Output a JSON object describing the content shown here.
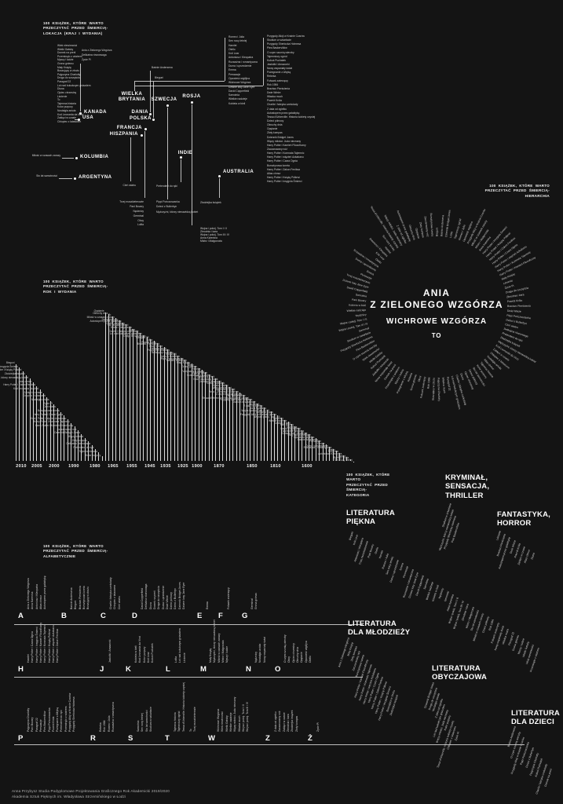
{
  "colors": {
    "background": "#141414",
    "text": "#e8e8e8",
    "accent": "#ffffff"
  },
  "footer": {
    "line1": "Anna Przybysz Studia Podyplomowe Projektowania Graficznego Rok Akademicki 2019/2020",
    "line2": "Akademia Sztuk Pięknych im. Władysława Strzemińskiego w Łodzi"
  },
  "location": {
    "title": [
      "100 KSIĄŻEK, KTÓRE WARTO",
      "PRZECZYTAĆ PRZED ŚMIERCIĄ-",
      "LOKACJA (KRAJ I WYDANIA)"
    ],
    "countries": [
      {
        "name": "USA",
        "books": [
          "Wiek niewinności",
          "Wielki Gatsby",
          "Domek na prerii",
          "Przeminęło z wiatrem",
          "Myszy i ludzie",
          "Grona gniewu",
          "Mały Książę",
          "Buszujący w zbożu",
          "Pajęczyna Charlotty",
          "Droga do szczęścia",
          "Paragraf 22",
          "Lot nad kukułczym gniazdem",
          "Diuna",
          "Ojciec chrzestny",
          "Lśnienie",
          "To",
          "Tajemna historia",
          "Kolor purpury",
          "Nostalgia anioła",
          "Kod Leonarda da Vinci",
          "Zaklęci w czasie",
          "Chłopiec z latawcem"
        ]
      },
      {
        "name": "KANADA",
        "books": [
          "Ania z Zielonego Wzgórza",
          "Delikatna równowaga",
          "Życie Pi"
        ]
      },
      {
        "name": "KOLUMBIA",
        "books": [
          "Miłość w czasach zarazy"
        ]
      },
      {
        "name": "ARGENTYNA",
        "books": [
          "Sto lat samotności"
        ]
      },
      {
        "name": "WIELKA BRYTANIA",
        "books": [
          "Romeo i Julia",
          "Sen nocy letniej",
          "Hamlet",
          "Otello",
          "Król Lear",
          "Antoniusz i Kleopatra",
          "Rozważna i romantyczna",
          "Duma i uprzedzenie",
          "Emma",
          "Perswazje",
          "Opowieść wigilijna",
          "Wichrowe Wzgórza",
          "Dziwne losy Jane Eyre",
          "David Copperfield",
          "Samotnia",
          "Wielkie nadzieje",
          "Kobieta w bieli",
          "Przygody Alicji w Krainie Czarów",
          "Studium w szkarłacie",
          "Przygody Sherlocka Holmesa",
          "Pies Baskervillów",
          "O czym szumią wierzby",
          "Tajemniczy ogród",
          "Kubuś Puchatek",
          "Jaskółki i Amazonki",
          "Nowy wspaniały świat",
          "Pożegnanie z Afryką",
          "Rebeka",
          "Folwark zwierzęcy",
          "Rok 1984",
          "Bractwo Pierścienia",
          "Dwie Wieże",
          "Władca much",
          "Powrót Króla",
          "Charlie i fabryka czekolady",
          "Z dala od zgiełku",
          "Autostopem przez galaktykę",
          "Tessa d'Urberville. Historia kobiety czystej",
          "Dzieci północy",
          "Okruchy dnia",
          "Opętanie",
          "Złoty kompas",
          "Dziennik Bridget Jones",
          "Więzy miłości. Juda nieznany",
          "Harry Potter i Kamień Filozoficzny",
          "Zaczarowany nóż",
          "Harry Potter i Komnata Tajemnic",
          "Harry Potter i więzień Azkabanu",
          "Harry Potter i Czara Ognia",
          "Bursztynowa luneta",
          "Harry Potter i Zakon Feniksa",
          "Atlas chmur",
          "Harry Potter i Książę Półkrwi",
          "Harry Potter i Insygnia Śmierci"
        ]
      },
      {
        "name": "DANIA",
        "books": [
          "Baśnie Andersena"
        ]
      },
      {
        "name": "POLSKA",
        "books": [
          "Bieguni"
        ]
      },
      {
        "name": "SZWECJA",
        "books": [
          "Pippi Pończoszanka",
          "Dzieci z Bullerbyn",
          "Mężczyźni, którzy nienawidzą kobiet"
        ]
      },
      {
        "name": "FRANCJA",
        "books": [
          "Trzej muszkieterowie",
          "Pani Bovary",
          "Nędznicy",
          "Germinal",
          "Obcy",
          "Lolita"
        ]
      },
      {
        "name": "HISZPANIA",
        "books": [
          "Cień wiatru"
        ]
      },
      {
        "name": "ROSJA",
        "books": [
          "Wojna i pokój. Tom I i II",
          "Zbrodnia i kara",
          "Wojna i pokój. Tom III i IV",
          "Anna Karenina",
          "Mistrz i Małgorzata"
        ]
      },
      {
        "name": "INDIE",
        "books": [
          "Pretendent do ręki"
        ]
      },
      {
        "name": "AUSTRALIA",
        "books": [
          "Złodziejka książek"
        ]
      }
    ]
  },
  "hierarchy": {
    "title": [
      "100 KSIĄŻEK, KTÓRE WARTO",
      "PRZECZYTAĆ PRZED ŚMIERCIĄ-",
      "HIERARCHIA"
    ],
    "center": {
      "line1": "ANIA",
      "line2": "Z ZIELONEGO WZGÓRZA",
      "line3": "WICHROWE WZGÓRZA",
      "line4": "TO"
    },
    "books": [
      "Baśnie Andersena",
      "Dziennik Bridget Jones",
      "Lolita",
      "Tajemniczy ogród",
      "Romeo i Julia",
      "Opowieść wigilijna",
      "Przygody Alicji w Krainie Czarów",
      "Miłość w czasach zarazy",
      "Mistrz i Małgorzata",
      "Anna Karenina",
      "Harry Potter i Insygnia Śmierci",
      "Harry Potter i Książę Półkrwi",
      "Harry Potter i Zakon Feniksa",
      "Harry Potter i Czara Ognia",
      "Harry Potter i więzień Azkabanu",
      "Harry Potter i Komnata Tajemnic",
      "Harry Potter i Kamień Filozoficzny",
      "Mały Książę",
      "Lśnienie",
      "Życie Pi",
      "Droga do szczęścia",
      "Zbrodnia i kara",
      "Powrót Króla",
      "Bractwo Pierścienia",
      "Dwie Wieże",
      "Pippi Pończoszanka",
      "Dzieci z Bullerbyn",
      "Cień wiatru",
      "Delikatna równowaga",
      "Pretendent do ręki",
      "Złodziejka książek",
      "Mężczyźni, którzy nienawidzą kobiet",
      "Kod Leonarda da Vinci",
      "Zaklęci w czasie",
      "Chłopiec z latawcem",
      "Nostalgia anioła",
      "Atlas chmur",
      "Tajemna historia",
      "Kolor purpury",
      "Sto lat samotności",
      "Dzieci północy",
      "Ojciec chrzestny",
      "Diuna",
      "Charlie i fabryka czekolady",
      "Lot nad kukułczym gniazdem",
      "Paragraf 22",
      "Władca much",
      "Pajęczyna Charlotty",
      "Buszujący w zbożu",
      "Rok 1984",
      "Folwark zwierzęcy",
      "Obcy",
      "Grona gniewu",
      "Rebeka",
      "Pożegnanie z Afryką",
      "Myszy i ludzie",
      "Przeminęło z wiatrem",
      "Domek na prerii",
      "Nowy wspaniały świat",
      "Jaskółki i Amazonki",
      "Kubuś Puchatek",
      "Wielki Gatsby",
      "Wiek niewinności",
      "O czym szumią wierzby",
      "Pies Baskervillów",
      "Przygody Sherlocka Holmesa",
      "Studium w szkarłacie",
      "Germinal",
      "Wojna i pokój. Tom III i IV",
      "Wojna i pokój. Tom I i II",
      "Nędznicy",
      "Wielkie nadzieje",
      "Kobieta w bieli",
      "Pani Bovary",
      "Samotnia",
      "David Copperfield",
      "Dziwne losy Jane Eyre",
      "Trzej muszkieterowie",
      "Perswazje",
      "Emma",
      "Duma i uprzedzenie",
      "Rozważna i romantyczna",
      "Otello",
      "Król Lear",
      "Antoniusz i Kleopatra",
      "Hamlet",
      "Sen nocy letniej",
      "Tessa d'Urberville. Historia kobiety czystej",
      "Więzy miłości. Juda nieznany",
      "Z dala od zgiełku",
      "Autostopem przez galaktykę",
      "Okruchy dnia",
      "Opętanie",
      "Złoty kompas",
      "Zaczarowany nóż",
      "Bursztynowa luneta",
      "Bieguni"
    ]
  },
  "years": {
    "title": [
      "100 KSIĄŻEK, KTÓRE WARTO",
      "PRZECZYTAĆ PRZED ŚMIERCIĄ-",
      "ROK I WYDANIA"
    ],
    "axis": [
      "2010",
      "2005",
      "2000",
      "1990",
      "1980",
      "1965",
      "1955",
      "1945",
      "1935",
      "1925",
      "1900",
      "1870",
      "1850",
      "1810",
      "1600"
    ],
    "books": [
      "Bieguni",
      "Harry Potter i Insygnia Śmierci",
      "Harry Potter i Książę Półkrwi",
      "Złodziejka książek",
      "Mężczyźni, którzy nienawidzą kobiet",
      "Atlas chmur",
      "Harry Potter i Zakon Feniksa",
      "Kod Leonarda da Vinci",
      "Zaklęci w czasie",
      "Chłopiec z latawcem",
      "Nostalgia anioła",
      "Życie Pi",
      "Cień wiatru",
      "Bursztynowa luneta",
      "Harry Potter i Czara Ognia",
      "Harry Potter i więzień Azkabanu",
      "Harry Potter i Komnata Tajemnic",
      "Harry Potter i Kamień Filozoficzny",
      "Zaczarowany nóż",
      "Dziennik Bridget Jones",
      "Więzy miłości",
      "Złoty kompas",
      "Delikatna równowaga",
      "Pretendent do ręki",
      "Tajemna historia",
      "Kolor purpury",
      "Opętanie",
      "Okruchy dnia",
      "To",
      "Miłość w czasach zarazy",
      "Dzieci północy",
      "Autostopem przez galaktykę",
      "Ojciec chrzestny",
      "Sto lat samotności",
      "Mistrz i Małgorzata",
      "Diuna",
      "Charlie i fabryka czekolady",
      "Lot nad kukułczym gniazdem",
      "Droga do szczęścia",
      "Paragraf 22",
      "Lolita",
      "Powrót Króla",
      "Bractwo Pierścienia",
      "Dwie Wieże",
      "Władca much",
      "Pajęczyna Charlotty",
      "Buszujący w zbożu",
      "Rok 1984",
      "Dzieci z Bullerbyn",
      "Pippi Pończoszanka",
      "Folwark zwierzęcy",
      "Mały Książę",
      "Obcy",
      "Grona gniewu",
      "Rebeka",
      "Pożegnanie z Afryką",
      "Myszy i ludzie",
      "Przeminęło z wiatrem",
      "Domek na prerii",
      "Nowy wspaniały świat",
      "Jaskółki i Amazonki",
      "Kubuś Puchatek",
      "Wielki Gatsby",
      "Wiek niewinności",
      "Tajemniczy ogród",
      "Ania z Zielonego Wzgórza",
      "O czym szumią wierzby",
      "Pies Baskervillów",
      "Tessa d'Urberville. Historia kobiety czystej",
      "Przygody Sherlocka Holmesa",
      "Studium w szkarłacie",
      "Germinal",
      "Z dala od zgiełku",
      "Anna Karenina",
      "Wojna i pokój. Tom III i IV",
      "Zbrodnia i kara",
      "Przygody Alicji w Krainie Czarów",
      "Wojna i pokój. Tom I i II",
      "Nędznicy",
      "Wielkie nadzieje",
      "Kobieta w bieli",
      "Pani Bovary",
      "Samotnia",
      "David Copperfield",
      "Wichrowe Wzgórza",
      "Dziwne losy Jane Eyre",
      "Trzej muszkieterowie",
      "Opowieść wigilijna",
      "Baśnie Andersena",
      "Perswazje",
      "Emma",
      "Duma i uprzedzenie",
      "Rozważna i romantyczna",
      "Otello",
      "Król Lear",
      "Antoniusz i Kleopatra",
      "Hamlet",
      "Romeo i Julia",
      "Sen nocy letniej"
    ]
  },
  "alphabet": {
    "title": [
      "100 KSIĄŻEK, KTÓRE WARTO",
      "PRZECZYTAĆ PRZED ŚMIERCIĄ-",
      "ALFABETYCZNIE"
    ],
    "groups": [
      {
        "letter": "A",
        "books": [
          "Ania z Zielonego Wzgórza",
          "Anna Karenina",
          "Antoniusz i Kleopatra",
          "Atlas chmur",
          "Autostopem przez galaktykę"
        ]
      },
      {
        "letter": "B",
        "books": [
          "Baśnie Andersena",
          "Bieguni",
          "Bractwo Pierścienia",
          "Bursztynowa luneta",
          "Buszujący w zbożu"
        ]
      },
      {
        "letter": "C",
        "books": [
          "Charlie i fabryka czekolady",
          "Chłopiec z latawcem",
          "Cień wiatru"
        ]
      },
      {
        "letter": "D",
        "books": [
          "David Copperfield",
          "Delikatna równowaga",
          "Diuna",
          "Domek na prerii",
          "Droga do szczęścia",
          "Duma i uprzedzenie",
          "Dwie Wieże",
          "Dzieci północy",
          "Dzieci z Bullerbyn",
          "Dziennik Bridget Jones",
          "Dziwne losy Jane Eyre"
        ]
      },
      {
        "letter": "E",
        "books": [
          "Emma"
        ]
      },
      {
        "letter": "F",
        "books": [
          "Folwark zwierzęcy"
        ]
      },
      {
        "letter": "G",
        "books": [
          "Germinal",
          "Grona gniewu"
        ]
      },
      {
        "letter": "H",
        "books": [
          "Hamlet",
          "Harry Potter i Czara Ognia",
          "Harry Potter i Insygnia Śmierci",
          "Harry Potter i Kamień Filozoficzny",
          "Harry Potter i Komnata Tajemnic",
          "Harry Potter i Książę Półkrwi",
          "Harry Potter i więzień Azkabanu",
          "Harry Potter i Zakon Feniksa"
        ]
      },
      {
        "letter": "J",
        "books": [
          "Jaskółki i Amazonki"
        ]
      },
      {
        "letter": "K",
        "books": [
          "Kobieta w bieli",
          "Kod Leonarda da Vinci",
          "Kolor purpury",
          "Król Lear",
          "Kubuś Puchatek"
        ]
      },
      {
        "letter": "L",
        "books": [
          "Lolita",
          "Lot nad kukułczym gniazdem",
          "Lśnienie"
        ]
      },
      {
        "letter": "M",
        "books": [
          "Mały Książę",
          "Mężczyźni, którzy nienawidzą kobiet",
          "Miłość w czasach zarazy",
          "Mistrz i Małgorzata",
          "Myszy i ludzie"
        ]
      },
      {
        "letter": "N",
        "books": [
          "Nędznicy",
          "Nostalgia anioła",
          "Nowy wspaniały świat"
        ]
      },
      {
        "letter": "O",
        "books": [
          "O czym szumią wierzby",
          "Obcy",
          "Ojciec chrzestny",
          "Okruchy dnia",
          "Opętanie",
          "Opowieść wigilijna",
          "Otello"
        ]
      },
      {
        "letter": "P",
        "books": [
          "Pajęczyna Charlotty",
          "Pani Bovary",
          "Paragraf 22",
          "Perswazje",
          "Pies Baskervillów",
          "Pippi Pończoszanka",
          "Powrót Króla",
          "Pożegnanie z Afryką",
          "Pretendent do ręki",
          "Przeminęło z wiatrem",
          "Przygody Alicji w Krainie Czarów",
          "Przygody Sherlocka Holmesa"
        ]
      },
      {
        "letter": "R",
        "books": [
          "Rebeka",
          "Rok 1984",
          "Romeo i Julia",
          "Rozważna i romantyczna"
        ]
      },
      {
        "letter": "S",
        "books": [
          "Samotnia",
          "Sen nocy letniej",
          "Sto lat samotności",
          "Studium w szkarłacie"
        ]
      },
      {
        "letter": "T",
        "books": [
          "Tajemna historia",
          "Tajemniczy ogród",
          "Tessa d'Urberville. Historia kobiety czystej",
          "To",
          "Trzej muszkieterowie"
        ]
      },
      {
        "letter": "W",
        "books": [
          "Wichrowe Wzgórza",
          "Wiek niewinności",
          "Wielki Gatsby",
          "Wielkie nadzieje",
          "Więzy miłości. Juda nieznany",
          "Władca much",
          "Wojna i pokój. Tom I i II",
          "Wojna i pokój. Tom III i IV"
        ]
      },
      {
        "letter": "Z",
        "books": [
          "Z dala od zgiełku",
          "Zaczarowany nóż",
          "Zaklęci w czasie",
          "Zbrodnia i kara",
          "Złodziejka książek",
          "Złoty kompas"
        ]
      },
      {
        "letter": "Ż",
        "books": [
          "Życie Pi"
        ]
      }
    ]
  },
  "categories": {
    "title": [
      "100 KSIĄŻEK, KTÓRE WARTO",
      "PRZECZYTAĆ PRZED ŚMIERCIĄ-",
      "KATEGORIA"
    ],
    "groups": [
      {
        "name": "KRYMINAŁ,\nSENSACJA,\nTHRILLER",
        "books": [
          "Studium w szkarłacie",
          "Mężczyźni, którzy nienawidzą kobiet",
          "Przygody Sherlocka Holmesa",
          "Pies Baskervillów"
        ]
      },
      {
        "name": "LITERATURA\nPIĘKNA",
        "books": [
          "Bieguni",
          "Król Lear",
          "Antoniusz i Kleopatra",
          "Trzej muszkieterowie",
          "Pani Bovary",
          "Otello",
          "Hamlet",
          "Romeo i Julia",
          "Sen nocy letniej",
          "Duma i uprzedzenie",
          "Emma",
          "Perswazje",
          "Rozważna i romantyczna",
          "Dziwne losy Jane Eyre",
          "David Copperfield",
          "Samotnia",
          "Wielkie nadzieje",
          "Kobieta w bieli",
          "Nędznicy",
          "Germinal",
          "Anna Karenina",
          "Wojna i pokój. Tom I i II",
          "Wojna i pokój. Tom III i IV",
          "Zbrodnia i kara",
          "Mistrz i Małgorzata",
          "Sto lat samotności",
          "Miłość w czasach zarazy",
          "Dzieci północy",
          "Rok 1984",
          "Folwark zwierzęcy",
          "Nowy wspaniały świat",
          "Władca much",
          "Paragraf 22",
          "Grona gniewu",
          "Myszy i ludzie",
          "Wielki Gatsby",
          "Wiek niewinności",
          "Przeminęło z wiatrem"
        ]
      },
      {
        "name": "FANTASTYKA,\nHORROR",
        "books": [
          "Lśnienie",
          "Bractwo Pierścienia",
          "Autostopem przez galaktykę",
          "Dwie Wieże",
          "Powrót Króla",
          "Zaklęci w czasie",
          "Atlas chmur",
          "Diuna"
        ]
      },
      {
        "name": "LITERATURA\nDLA MŁODZIEŻY",
        "books": [
          "Ania z Zielonego Wzgórza",
          "Mały Książę",
          "Złoty kompas",
          "Zaczarowany nóż",
          "Bursztynowa luneta",
          "Harry Potter i Kamień Filozoficzny",
          "Harry Potter i Komnata Tajemnic",
          "Harry Potter i więzień Azkabanu",
          "Harry Potter i Czara Ognia",
          "Harry Potter i Zakon Feniksa",
          "Harry Potter i Książę Półkrwi",
          "Harry Potter i Insygnia Śmierci",
          "Buszujący w zbożu",
          "Złodziejka książek"
        ]
      },
      {
        "name": "LITERATURA\nOBYCZAJOWA",
        "books": [
          "Dziennik Bridget Jones",
          "Droga do szczęścia",
          "Nostalgia anioła",
          "Z dala od zgiełku",
          "Lot nad kukułczym gniazdem",
          "Więzy miłości. Juda nieznany",
          "Kolor purpury",
          "Tessa d'Urberville. Historia kobiety czystej",
          "Chłopiec z latawcem",
          "Życie Pi"
        ]
      },
      {
        "name": "LITERATURA\nDLA DZIECI",
        "books": [
          "Baśnie Andersena",
          "O czym szumią wierzby",
          "Przygody Alicji w Krainie Czarów",
          "Pippi Pończoszanka",
          "Dzieci z Bullerbyn",
          "Pajęczyna Charlotty",
          "Kubuś Puchatek",
          "Charlie i fabryka czekolady",
          "Domek na prerii"
        ]
      }
    ]
  }
}
